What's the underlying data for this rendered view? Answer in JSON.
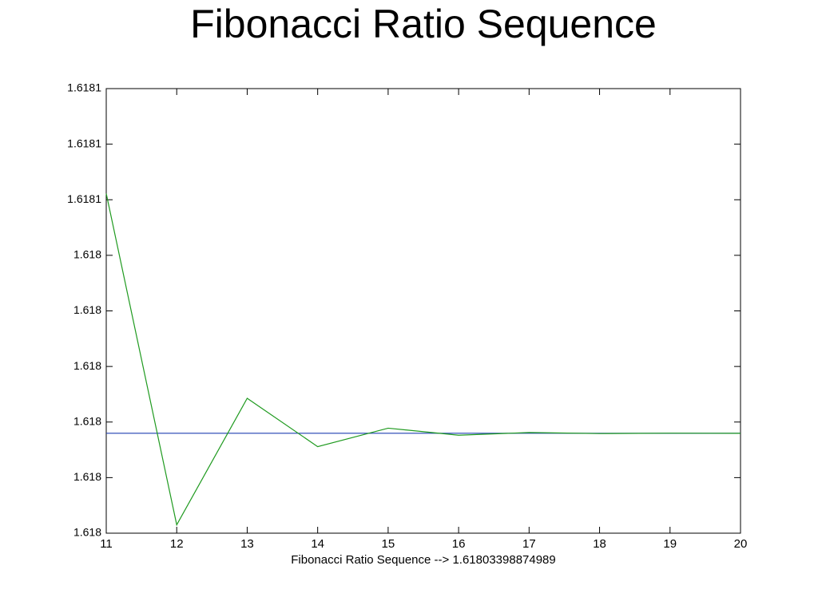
{
  "chart_data": {
    "type": "line",
    "title": "Fibonacci Ratio Sequence",
    "x_label": "Fibonacci Ratio Sequence --> 1.61803398874989",
    "x": [
      11,
      12,
      13,
      14,
      15,
      16,
      17,
      18,
      19,
      20
    ],
    "series": [
      {
        "color": "#1f9a1f",
        "values": [
          1.6180555556,
          1.6180257511,
          1.6180371353,
          1.6180327869,
          1.6180344478,
          1.6180338134,
          1.6180340557,
          1.6180339632,
          1.6180339985,
          1.618033985
        ]
      },
      {
        "color": "#1f3fb0",
        "values": [
          1.61803398874989,
          1.61803398874989,
          1.61803398874989,
          1.61803398874989,
          1.61803398874989,
          1.61803398874989,
          1.61803398874989,
          1.61803398874989,
          1.61803398874989,
          1.61803398874989
        ]
      }
    ],
    "xlim": [
      11,
      20
    ],
    "xticks": [
      11,
      12,
      13,
      14,
      15,
      16,
      17,
      18,
      19,
      20
    ],
    "ylim": [
      1.618025,
      1.618065
    ],
    "yticks": [
      {
        "value": 1.618025,
        "label": "1.618"
      },
      {
        "value": 1.61803,
        "label": "1.618"
      },
      {
        "value": 1.618035,
        "label": "1.618"
      },
      {
        "value": 1.61804,
        "label": "1.618"
      },
      {
        "value": 1.618045,
        "label": "1.618"
      },
      {
        "value": 1.61805,
        "label": "1.618"
      },
      {
        "value": 1.618055,
        "label": "1.6181"
      },
      {
        "value": 1.61806,
        "label": "1.6181"
      },
      {
        "value": 1.618065,
        "label": "1.6181"
      }
    ],
    "grid": false
  }
}
